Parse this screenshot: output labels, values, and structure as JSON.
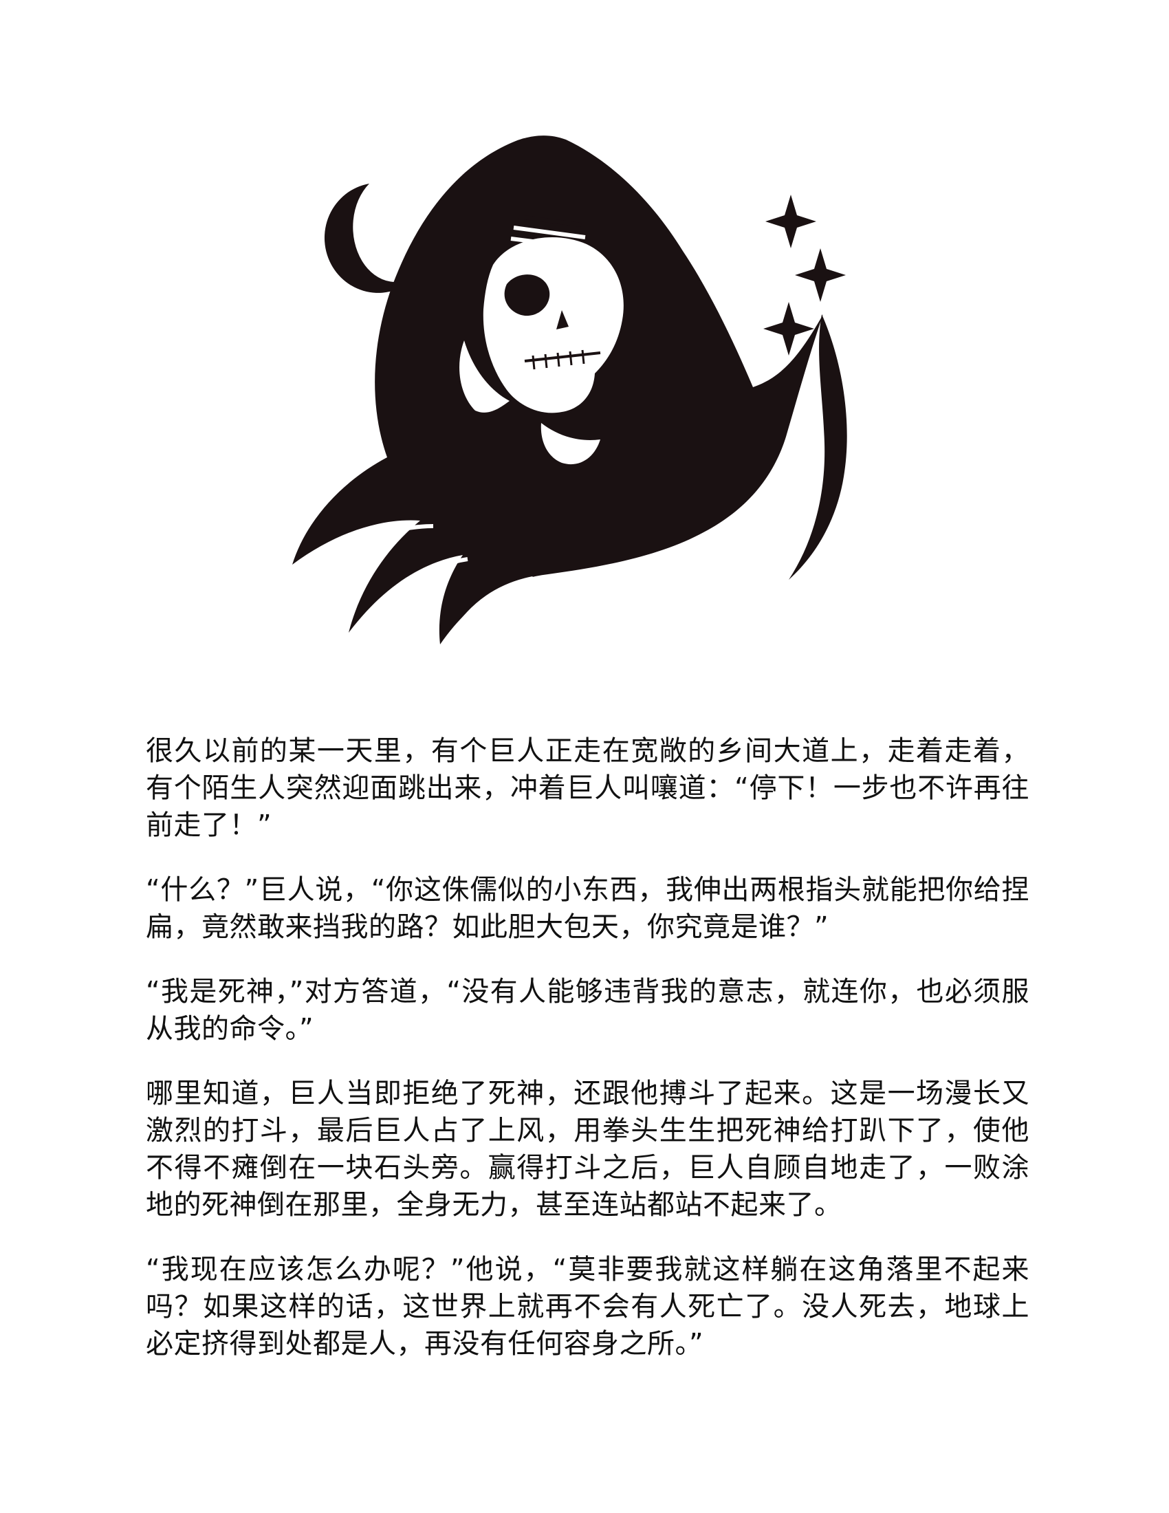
{
  "illustration": {
    "subject_icon": "grim-reaper-hood-skull-icon",
    "moon_icon": "crescent-moon-icon",
    "star_icons": [
      "star-icon",
      "star-icon",
      "star-icon"
    ],
    "ink_color": "#1a1112"
  },
  "story": {
    "paragraphs": [
      "很久以前的某一天里，有个巨人正走在宽敞的乡间大道上，走着走着，有个陌生人突然迎面跳出来，冲着巨人叫嚷道：“停下！一步也不许再往前走了！”",
      "“什么？”巨人说，“你这侏儒似的小东西，我伸出两根指头就能把你给捏扁，竟然敢来挡我的路？如此胆大包天，你究竟是谁？”",
      "“我是死神，”对方答道，“没有人能够违背我的意志，就连你，也必须服从我的命令。”",
      "哪里知道，巨人当即拒绝了死神，还跟他搏斗了起来。这是一场漫长又激烈的打斗，最后巨人占了上风，用拳头生生把死神给打趴下了，使他不得不瘫倒在一块石头旁。赢得打斗之后，巨人自顾自地走了，一败涂地的死神倒在那里，全身无力，甚至连站都站不起来了。",
      "“我现在应该怎么办呢？”他说，“莫非要我就这样躺在这角落里不起来吗？如果这样的话，这世界上就再不会有人死亡了。没人死去，地球上必定挤得到处都是人，再没有任何容身之所。”"
    ]
  }
}
